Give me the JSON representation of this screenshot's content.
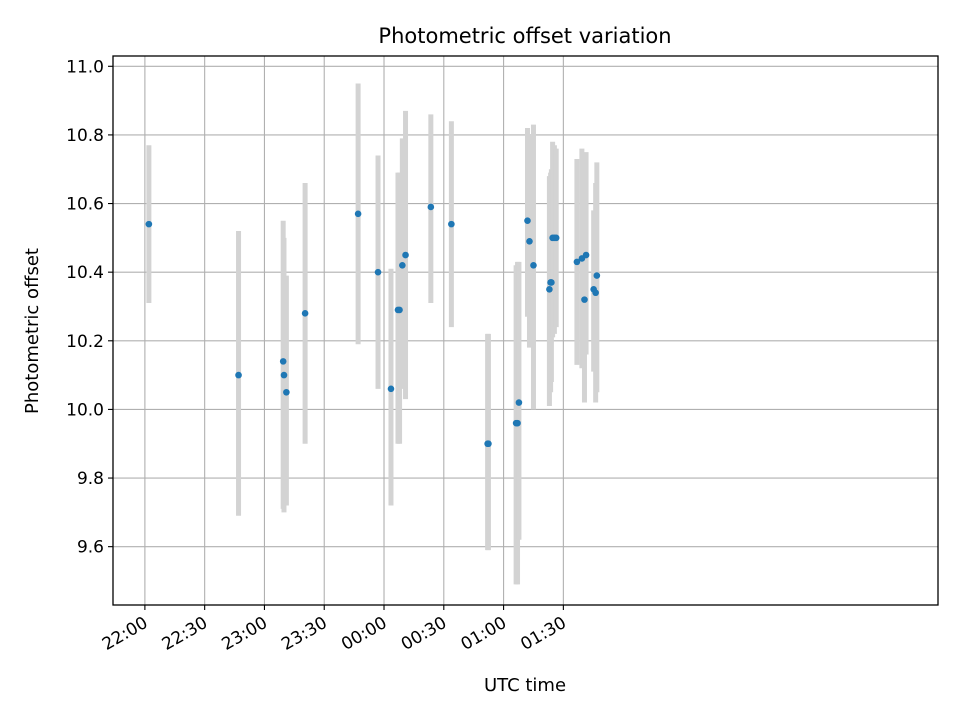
{
  "chart_data": {
    "type": "scatter",
    "title": "Photometric offset variation",
    "xlabel": "UTC time",
    "ylabel": "Photometric offset",
    "x_axis": {
      "unit": "minutes after 22:00 UTC",
      "range": [
        -16,
        398
      ],
      "ticks": [
        {
          "value": 0,
          "label": "22:00"
        },
        {
          "value": 30,
          "label": "22:30"
        },
        {
          "value": 60,
          "label": "23:00"
        },
        {
          "value": 90,
          "label": "23:30"
        },
        {
          "value": 120,
          "label": "00:00"
        },
        {
          "value": 150,
          "label": "00:30"
        },
        {
          "value": 180,
          "label": "01:00"
        },
        {
          "value": 210,
          "label": "01:30"
        }
      ]
    },
    "y_axis": {
      "range": [
        9.43,
        11.03
      ],
      "ticks": [
        9.6,
        9.8,
        10.0,
        10.2,
        10.4,
        10.6,
        10.8,
        11.0
      ],
      "tick_labels": [
        "9.6",
        "9.8",
        "10.0",
        "10.2",
        "10.4",
        "10.6",
        "10.8",
        "11.0"
      ]
    },
    "grid": true,
    "colors": {
      "points": "#1f77b4",
      "errorbars": "#d3d3d3",
      "grid": "#b0b0b0"
    },
    "points": [
      {
        "x": 2.0,
        "y": 10.54,
        "ylow": 10.31,
        "yhigh": 10.77
      },
      {
        "x": 47.0,
        "y": 10.1,
        "ylow": 9.69,
        "yhigh": 10.52
      },
      {
        "x": 69.4,
        "y": 10.14,
        "ylow": 9.71,
        "yhigh": 10.55
      },
      {
        "x": 69.8,
        "y": 10.1,
        "ylow": 9.7,
        "yhigh": 10.5
      },
      {
        "x": 71.0,
        "y": 10.05,
        "ylow": 9.72,
        "yhigh": 10.39
      },
      {
        "x": 80.4,
        "y": 10.28,
        "ylow": 9.9,
        "yhigh": 10.66
      },
      {
        "x": 107.0,
        "y": 10.57,
        "ylow": 10.19,
        "yhigh": 10.95
      },
      {
        "x": 117.0,
        "y": 10.4,
        "ylow": 10.06,
        "yhigh": 10.74
      },
      {
        "x": 123.5,
        "y": 10.06,
        "ylow": 9.72,
        "yhigh": 10.41
      },
      {
        "x": 127.0,
        "y": 10.29,
        "ylow": 9.9,
        "yhigh": 10.69
      },
      {
        "x": 127.8,
        "y": 10.29,
        "ylow": 9.9,
        "yhigh": 10.69
      },
      {
        "x": 129.2,
        "y": 10.42,
        "ylow": 10.06,
        "yhigh": 10.79
      },
      {
        "x": 130.8,
        "y": 10.45,
        "ylow": 10.03,
        "yhigh": 10.87
      },
      {
        "x": 143.5,
        "y": 10.59,
        "ylow": 10.31,
        "yhigh": 10.86
      },
      {
        "x": 153.8,
        "y": 10.54,
        "ylow": 10.24,
        "yhigh": 10.84
      },
      {
        "x": 172.0,
        "y": 9.9,
        "ylow": 9.59,
        "yhigh": 10.22
      },
      {
        "x": 172.4,
        "y": 9.9,
        "ylow": 9.59,
        "yhigh": 10.22
      },
      {
        "x": 186.3,
        "y": 9.96,
        "ylow": 9.49,
        "yhigh": 10.42
      },
      {
        "x": 187.0,
        "y": 9.96,
        "ylow": 9.49,
        "yhigh": 10.43
      },
      {
        "x": 187.7,
        "y": 10.02,
        "ylow": 9.62,
        "yhigh": 10.43
      },
      {
        "x": 192.0,
        "y": 10.55,
        "ylow": 10.27,
        "yhigh": 10.82
      },
      {
        "x": 193.0,
        "y": 10.49,
        "ylow": 10.18,
        "yhigh": 10.8
      },
      {
        "x": 195.0,
        "y": 10.42,
        "ylow": 10.0,
        "yhigh": 10.83
      },
      {
        "x": 203.0,
        "y": 10.35,
        "ylow": 10.01,
        "yhigh": 10.68
      },
      {
        "x": 203.6,
        "y": 10.37,
        "ylow": 10.05,
        "yhigh": 10.69
      },
      {
        "x": 204.0,
        "y": 10.37,
        "ylow": 10.08,
        "yhigh": 10.7
      },
      {
        "x": 204.6,
        "y": 10.5,
        "ylow": 10.21,
        "yhigh": 10.78
      },
      {
        "x": 205.5,
        "y": 10.5,
        "ylow": 10.22,
        "yhigh": 10.77
      },
      {
        "x": 206.4,
        "y": 10.5,
        "ylow": 10.24,
        "yhigh": 10.76
      },
      {
        "x": 216.8,
        "y": 10.43,
        "ylow": 10.13,
        "yhigh": 10.73
      },
      {
        "x": 219.3,
        "y": 10.44,
        "ylow": 10.12,
        "yhigh": 10.76
      },
      {
        "x": 220.6,
        "y": 10.32,
        "ylow": 10.02,
        "yhigh": 10.61
      },
      {
        "x": 221.4,
        "y": 10.45,
        "ylow": 10.16,
        "yhigh": 10.75
      },
      {
        "x": 225.2,
        "y": 10.35,
        "ylow": 10.11,
        "yhigh": 10.58
      },
      {
        "x": 226.2,
        "y": 10.34,
        "ylow": 10.02,
        "yhigh": 10.66
      },
      {
        "x": 226.8,
        "y": 10.39,
        "ylow": 10.05,
        "yhigh": 10.72
      }
    ]
  }
}
